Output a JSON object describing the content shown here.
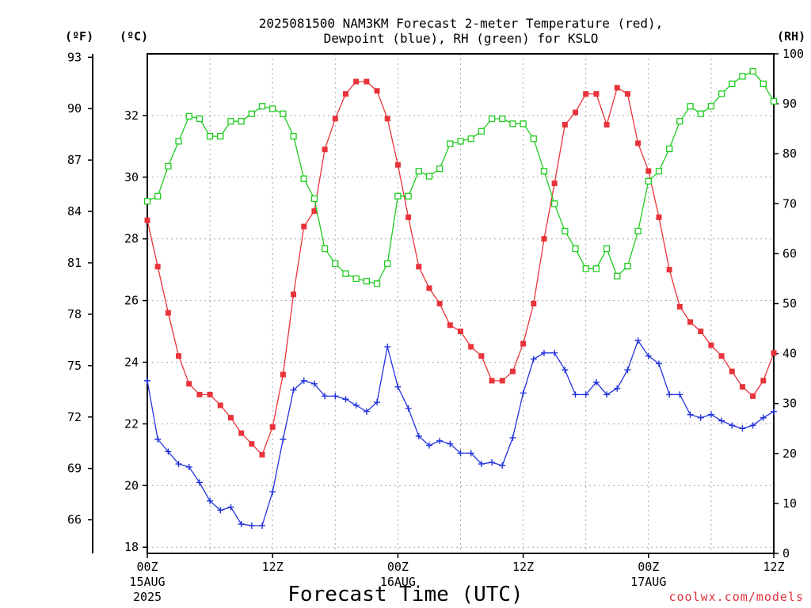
{
  "chart_data": {
    "type": "line",
    "title_lines": [
      "2025081500 NAM3KM Forecast 2-meter Temperature (red),",
      "Dewpoint (blue), RH (green) for KSLO"
    ],
    "xlabel": "Forecast Time (UTC)",
    "unit_labels": {
      "fahrenheit": "(ºF)",
      "celsius": "(ºC)",
      "rh": "(RH)"
    },
    "credit": "coolwx.com/models",
    "x_range_hours": [
      0,
      60
    ],
    "celsius_ylim": [
      17.8,
      34
    ],
    "rh_ylim": [
      0,
      100
    ],
    "x_ticks": [
      {
        "hour": 0,
        "label": "00Z",
        "date": "15AUG",
        "year": "2025"
      },
      {
        "hour": 12,
        "label": "12Z"
      },
      {
        "hour": 24,
        "label": "00Z",
        "date": "16AUG"
      },
      {
        "hour": 36,
        "label": "12Z"
      },
      {
        "hour": 48,
        "label": "00Z",
        "date": "17AUG"
      },
      {
        "hour": 60,
        "label": "12Z"
      }
    ],
    "fahrenheit_ticks": [
      {
        "value": 93,
        "label": "93"
      },
      {
        "value": 90,
        "label": "90"
      },
      {
        "value": 87,
        "label": "87"
      },
      {
        "value": 84,
        "label": "84"
      },
      {
        "value": 81,
        "label": "81"
      },
      {
        "value": 78,
        "label": "78"
      },
      {
        "value": 75,
        "label": "75"
      },
      {
        "value": 72,
        "label": "72"
      },
      {
        "value": 69,
        "label": "69"
      },
      {
        "value": 66,
        "label": "66"
      }
    ],
    "celsius_ticks": [
      {
        "value": 18,
        "label": "18"
      },
      {
        "value": 20,
        "label": "20"
      },
      {
        "value": 22,
        "label": "22"
      },
      {
        "value": 24,
        "label": "24"
      },
      {
        "value": 26,
        "label": "26"
      },
      {
        "value": 28,
        "label": "28"
      },
      {
        "value": 30,
        "label": "30"
      },
      {
        "value": 32,
        "label": "32"
      }
    ],
    "rh_ticks": [
      {
        "value": 0,
        "label": "0"
      },
      {
        "value": 10,
        "label": "10"
      },
      {
        "value": 20,
        "label": "20"
      },
      {
        "value": 30,
        "label": "30"
      },
      {
        "value": 40,
        "label": "40"
      },
      {
        "value": 50,
        "label": "50"
      },
      {
        "value": 60,
        "label": "60"
      },
      {
        "value": 70,
        "label": "70"
      },
      {
        "value": 80,
        "label": "80"
      },
      {
        "value": 90,
        "label": "90"
      },
      {
        "value": 100,
        "label": "100"
      }
    ],
    "grid": true,
    "series": [
      {
        "name": "2-meter Temperature (red)",
        "axis": "celsius",
        "color": "#e8333a",
        "marker": "filled-square",
        "x": [
          0,
          1,
          2,
          3,
          4,
          5,
          6,
          7,
          8,
          9,
          10,
          11,
          12,
          13,
          14,
          15,
          16,
          17,
          18,
          19,
          20,
          21,
          22,
          23,
          24,
          25,
          26,
          27,
          28,
          29,
          30,
          31,
          32,
          33,
          34,
          35,
          36,
          37,
          38,
          39,
          40,
          41,
          42,
          43,
          44,
          45,
          46,
          47,
          48,
          49,
          50,
          51,
          52,
          53,
          54,
          55,
          56,
          57,
          58,
          59,
          60
        ],
        "values": [
          28.6,
          27.1,
          25.6,
          24.2,
          23.3,
          22.95,
          22.95,
          22.6,
          22.2,
          21.7,
          21.35,
          21.0,
          21.9,
          23.6,
          26.2,
          28.4,
          28.9,
          30.9,
          31.9,
          32.7,
          33.1,
          33.1,
          32.8,
          31.9,
          30.4,
          28.7,
          27.1,
          26.4,
          25.9,
          25.2,
          25.0,
          24.5,
          24.2,
          23.4,
          23.4,
          23.7,
          24.6,
          25.9,
          28.0,
          29.8,
          31.7,
          32.1,
          32.7,
          32.7,
          31.7,
          32.9,
          32.7,
          31.1,
          30.2,
          28.7,
          27.0,
          25.8,
          25.3,
          25.0,
          24.55,
          24.2,
          23.7,
          23.2,
          22.9,
          23.4,
          24.3
        ]
      },
      {
        "name": "Dewpoint (blue)",
        "axis": "celsius",
        "color": "#2233dd",
        "marker": "plus",
        "x": [
          0,
          1,
          2,
          3,
          4,
          5,
          6,
          7,
          8,
          9,
          10,
          11,
          12,
          13,
          14,
          15,
          16,
          17,
          18,
          19,
          20,
          21,
          22,
          23,
          24,
          25,
          26,
          27,
          28,
          29,
          30,
          31,
          32,
          33,
          34,
          35,
          36,
          37,
          38,
          39,
          40,
          41,
          42,
          43,
          44,
          45,
          46,
          47,
          48,
          49,
          50,
          51,
          52,
          53,
          54,
          55,
          56,
          57,
          58,
          59,
          60
        ],
        "values": [
          23.4,
          21.5,
          21.1,
          20.7,
          20.6,
          20.1,
          19.5,
          19.2,
          19.3,
          18.75,
          18.7,
          18.7,
          19.8,
          21.5,
          23.1,
          23.4,
          23.3,
          22.9,
          22.9,
          22.8,
          22.6,
          22.4,
          22.7,
          24.5,
          23.2,
          22.5,
          21.6,
          21.3,
          21.45,
          21.35,
          21.05,
          21.05,
          20.7,
          20.75,
          20.65,
          21.55,
          23.0,
          24.1,
          24.3,
          24.3,
          23.75,
          22.95,
          22.95,
          23.35,
          22.95,
          23.15,
          23.75,
          24.7,
          24.2,
          23.95,
          22.95,
          22.95,
          22.3,
          22.2,
          22.3,
          22.1,
          21.95,
          21.85,
          21.95,
          22.2,
          22.4
        ]
      },
      {
        "name": "RH (green)",
        "axis": "rh",
        "color": "#1fcc1f",
        "marker": "open-square",
        "x": [
          0,
          1,
          2,
          3,
          4,
          5,
          6,
          7,
          8,
          9,
          10,
          11,
          12,
          13,
          14,
          15,
          16,
          17,
          18,
          19,
          20,
          21,
          22,
          23,
          24,
          25,
          26,
          27,
          28,
          29,
          30,
          31,
          32,
          33,
          34,
          35,
          36,
          37,
          38,
          39,
          40,
          41,
          42,
          43,
          44,
          45,
          46,
          47,
          48,
          49,
          50,
          51,
          52,
          53,
          54,
          55,
          56,
          57,
          58,
          59,
          60
        ],
        "values": [
          70.5,
          71.5,
          77.5,
          82.5,
          87.5,
          87.0,
          83.5,
          83.5,
          86.5,
          86.5,
          88,
          89.5,
          89,
          88,
          83.5,
          75,
          71,
          61,
          58,
          56,
          55,
          54.5,
          54,
          58,
          71.5,
          71.5,
          76.5,
          75.5,
          77,
          82,
          82.5,
          83,
          84.5,
          87,
          87,
          86,
          86,
          83,
          76.5,
          70,
          64.5,
          61,
          57,
          57,
          61,
          55.5,
          57.5,
          64.5,
          74.5,
          76.5,
          81,
          86.5,
          89.5,
          88,
          89.5,
          92,
          94,
          95.5,
          96.5,
          94,
          90.5
        ]
      }
    ]
  }
}
